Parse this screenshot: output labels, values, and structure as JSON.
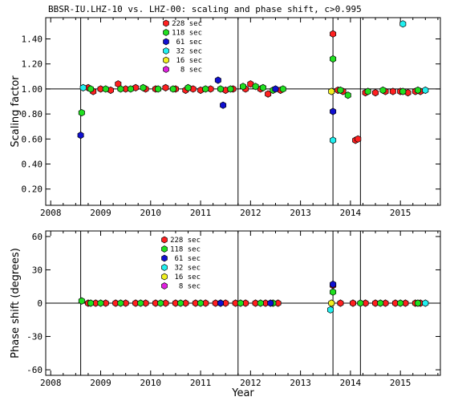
{
  "chart_data": [
    {
      "type": "scatter",
      "title": "BBSR-IU.LHZ-10 vs. LHZ-00: scaling and phase shift, c>0.995",
      "xlabel": "",
      "ylabel": "Scaling factor",
      "xlim": [
        2007.9,
        2015.8
      ],
      "ylim": [
        0.07,
        1.57
      ],
      "xticks": [
        2008,
        2009,
        2010,
        2011,
        2012,
        2013,
        2014,
        2015
      ],
      "xtick_labels": [
        "2008",
        "2009",
        "2010",
        "2011",
        "2012",
        "2013",
        "2014",
        "2015"
      ],
      "yticks": [
        0.2,
        0.4,
        0.6,
        0.8,
        1.0,
        1.2,
        1.4
      ],
      "ytick_labels": [
        "0.20",
        "0.40",
        "0.60",
        "0.80",
        "1.00",
        "1.20",
        "1.40"
      ],
      "reference_line": 1.0,
      "event_lines": [
        2008.6,
        2011.75,
        2013.65,
        2014.2
      ],
      "legend_placement": "top-center",
      "series": [
        {
          "name": "228 sec",
          "color": "#ff2020",
          "points": [
            [
              2008.75,
              1.01
            ],
            [
              2008.85,
              0.98
            ],
            [
              2009.0,
              1.0
            ],
            [
              2009.2,
              0.99
            ],
            [
              2009.35,
              1.04
            ],
            [
              2009.5,
              1.0
            ],
            [
              2009.7,
              1.01
            ],
            [
              2009.9,
              1.0
            ],
            [
              2010.1,
              1.0
            ],
            [
              2010.3,
              1.01
            ],
            [
              2010.5,
              1.0
            ],
            [
              2010.7,
              0.99
            ],
            [
              2010.85,
              1.0
            ],
            [
              2011.0,
              0.99
            ],
            [
              2011.2,
              1.0
            ],
            [
              2011.5,
              0.99
            ],
            [
              2011.65,
              1.0
            ],
            [
              2011.9,
              1.0
            ],
            [
              2012.0,
              1.04
            ],
            [
              2012.2,
              1.0
            ],
            [
              2012.35,
              0.96
            ],
            [
              2012.6,
              0.99
            ],
            [
              2013.65,
              1.44
            ],
            [
              2013.75,
              0.99
            ],
            [
              2013.85,
              0.98
            ],
            [
              2014.1,
              0.59
            ],
            [
              2014.15,
              0.6
            ],
            [
              2014.3,
              0.97
            ],
            [
              2014.5,
              0.97
            ],
            [
              2014.7,
              0.98
            ],
            [
              2014.85,
              0.98
            ],
            [
              2015.0,
              0.98
            ],
            [
              2015.15,
              0.97
            ],
            [
              2015.3,
              0.98
            ],
            [
              2015.4,
              0.98
            ]
          ]
        },
        {
          "name": "118 sec",
          "color": "#20e020",
          "points": [
            [
              2008.62,
              0.81
            ],
            [
              2008.8,
              1.0
            ],
            [
              2009.1,
              1.0
            ],
            [
              2009.4,
              1.0
            ],
            [
              2009.6,
              1.0
            ],
            [
              2009.85,
              1.01
            ],
            [
              2010.15,
              1.0
            ],
            [
              2010.45,
              1.0
            ],
            [
              2010.75,
              1.01
            ],
            [
              2011.1,
              1.0
            ],
            [
              2011.4,
              1.0
            ],
            [
              2011.6,
              1.0
            ],
            [
              2011.85,
              1.02
            ],
            [
              2012.1,
              1.02
            ],
            [
              2012.25,
              1.01
            ],
            [
              2012.45,
              0.99
            ],
            [
              2012.65,
              1.0
            ],
            [
              2013.65,
              1.24
            ],
            [
              2013.8,
              0.99
            ],
            [
              2013.95,
              0.95
            ],
            [
              2014.35,
              0.98
            ],
            [
              2014.65,
              0.99
            ],
            [
              2015.05,
              0.98
            ],
            [
              2015.35,
              0.99
            ]
          ]
        },
        {
          "name": "61 sec",
          "color": "#1010d0",
          "points": [
            [
              2008.6,
              0.63
            ],
            [
              2011.35,
              1.07
            ],
            [
              2011.45,
              0.87
            ],
            [
              2012.5,
              1.0
            ],
            [
              2013.65,
              0.82
            ]
          ]
        },
        {
          "name": "32 sec",
          "color": "#20f0f0",
          "points": [
            [
              2008.65,
              1.01
            ],
            [
              2013.65,
              0.59
            ],
            [
              2015.05,
              1.52
            ],
            [
              2015.5,
              0.99
            ]
          ]
        },
        {
          "name": "16 sec",
          "color": "#f0f020",
          "points": [
            [
              2013.62,
              0.98
            ]
          ]
        },
        {
          "name": "8 sec",
          "color": "#e020e0",
          "points": []
        }
      ]
    },
    {
      "type": "scatter",
      "xlabel": "Year",
      "ylabel": "Phase shift (degrees)",
      "xlim": [
        2007.9,
        2015.8
      ],
      "ylim": [
        -65,
        65
      ],
      "xticks": [
        2008,
        2009,
        2010,
        2011,
        2012,
        2013,
        2014,
        2015
      ],
      "xtick_labels": [
        "2008",
        "2009",
        "2010",
        "2011",
        "2012",
        "2013",
        "2014",
        "2015"
      ],
      "yticks": [
        -60,
        -30,
        0,
        30,
        60
      ],
      "ytick_labels": [
        "-60",
        "-30",
        "0",
        "30",
        "60"
      ],
      "reference_line": 0,
      "event_lines": [
        2008.6,
        2011.75,
        2013.65,
        2014.2
      ],
      "legend_placement": "top-center",
      "series": [
        {
          "name": "228 sec",
          "color": "#ff2020",
          "points": [
            [
              2008.75,
              0
            ],
            [
              2008.9,
              0
            ],
            [
              2009.1,
              0
            ],
            [
              2009.3,
              0
            ],
            [
              2009.5,
              0
            ],
            [
              2009.7,
              0
            ],
            [
              2009.9,
              0
            ],
            [
              2010.1,
              0
            ],
            [
              2010.3,
              0
            ],
            [
              2010.5,
              0
            ],
            [
              2010.7,
              0
            ],
            [
              2010.9,
              0
            ],
            [
              2011.1,
              0
            ],
            [
              2011.3,
              0
            ],
            [
              2011.5,
              0
            ],
            [
              2011.7,
              0
            ],
            [
              2011.9,
              0
            ],
            [
              2012.1,
              0
            ],
            [
              2012.3,
              0
            ],
            [
              2012.55,
              0
            ],
            [
              2013.65,
              16
            ],
            [
              2013.8,
              0
            ],
            [
              2014.05,
              0
            ],
            [
              2014.3,
              0
            ],
            [
              2014.5,
              0
            ],
            [
              2014.7,
              0
            ],
            [
              2014.9,
              0
            ],
            [
              2015.1,
              0
            ],
            [
              2015.3,
              0
            ],
            [
              2015.4,
              0
            ]
          ]
        },
        {
          "name": "118 sec",
          "color": "#20e020",
          "points": [
            [
              2008.62,
              2
            ],
            [
              2008.8,
              0
            ],
            [
              2009.0,
              0
            ],
            [
              2009.4,
              0
            ],
            [
              2009.8,
              0
            ],
            [
              2010.2,
              0
            ],
            [
              2010.6,
              0
            ],
            [
              2011.0,
              0
            ],
            [
              2011.4,
              0
            ],
            [
              2011.8,
              0
            ],
            [
              2012.2,
              0
            ],
            [
              2012.45,
              0
            ],
            [
              2013.65,
              10
            ],
            [
              2014.2,
              0
            ],
            [
              2014.6,
              0
            ],
            [
              2015.0,
              0
            ],
            [
              2015.35,
              0
            ]
          ]
        },
        {
          "name": "61 sec",
          "color": "#1010d0",
          "points": [
            [
              2011.4,
              0
            ],
            [
              2012.4,
              0
            ],
            [
              2013.65,
              17
            ]
          ]
        },
        {
          "name": "32 sec",
          "color": "#20f0f0",
          "points": [
            [
              2013.6,
              -6
            ],
            [
              2015.5,
              0
            ]
          ]
        },
        {
          "name": "16 sec",
          "color": "#f0f020",
          "points": [
            [
              2013.62,
              0
            ]
          ]
        },
        {
          "name": "8 sec",
          "color": "#e020e0",
          "points": []
        }
      ]
    }
  ]
}
